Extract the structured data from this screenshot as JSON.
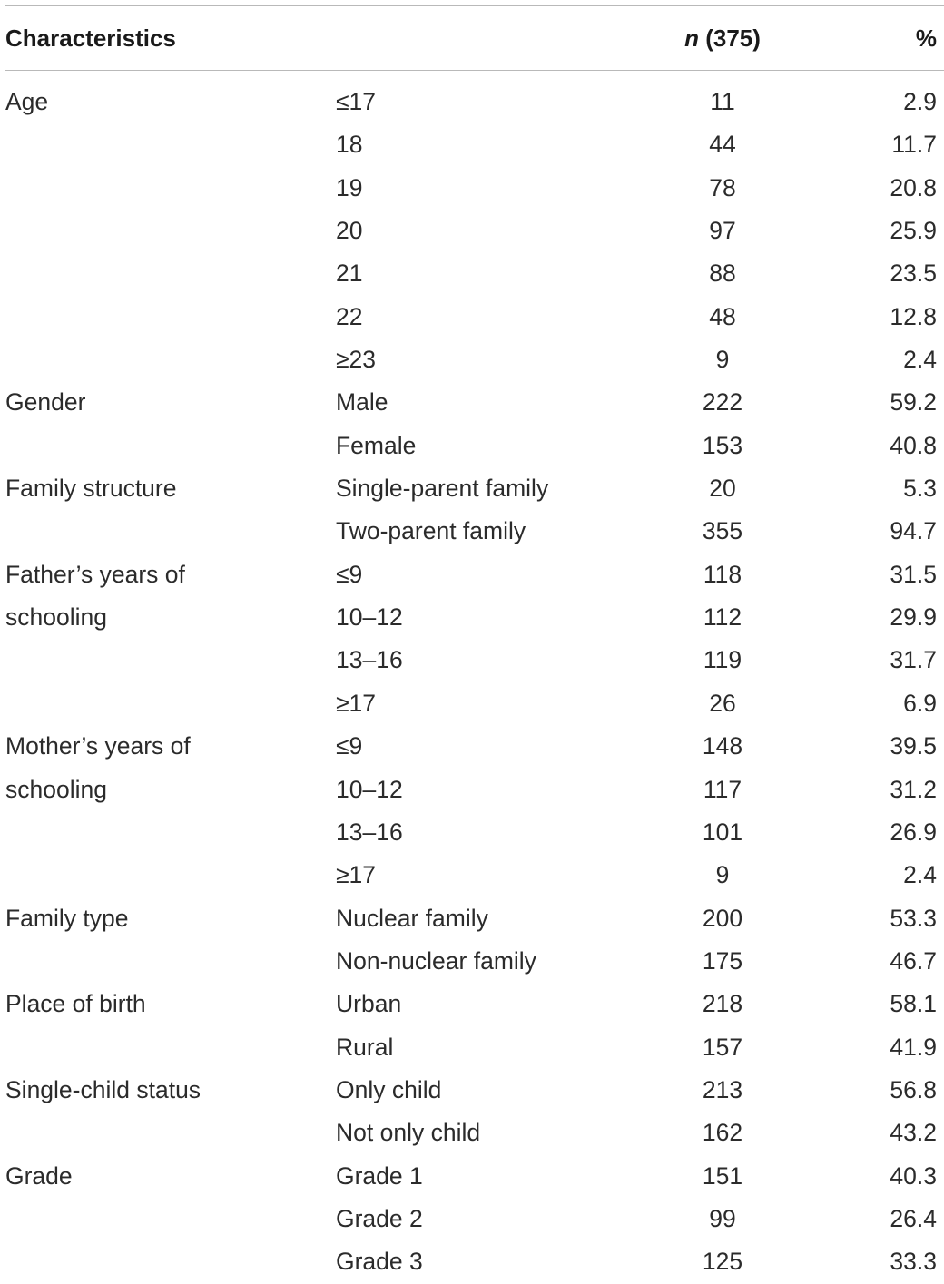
{
  "header": {
    "characteristics": "Characteristics",
    "n_italic": "n",
    "n_count": " (375)",
    "percent": "%"
  },
  "rows": [
    {
      "char": "Age",
      "cat": "≤17",
      "n": "11",
      "pct": "2.9"
    },
    {
      "char": "",
      "cat": "18",
      "n": "44",
      "pct": "11.7"
    },
    {
      "char": "",
      "cat": "19",
      "n": "78",
      "pct": "20.8"
    },
    {
      "char": "",
      "cat": "20",
      "n": "97",
      "pct": "25.9"
    },
    {
      "char": "",
      "cat": "21",
      "n": "88",
      "pct": "23.5"
    },
    {
      "char": "",
      "cat": "22",
      "n": "48",
      "pct": "12.8"
    },
    {
      "char": "",
      "cat": "≥23",
      "n": "9",
      "pct": "2.4"
    },
    {
      "char": "Gender",
      "cat": "Male",
      "n": "222",
      "pct": "59.2"
    },
    {
      "char": "",
      "cat": "Female",
      "n": "153",
      "pct": "40.8"
    },
    {
      "char": "Family structure",
      "cat": "Single-parent family",
      "n": "20",
      "pct": "5.3"
    },
    {
      "char": "",
      "cat": "Two-parent family",
      "n": "355",
      "pct": "94.7"
    },
    {
      "char": "Father’s years of",
      "cat": "≤9",
      "n": "118",
      "pct": "31.5"
    },
    {
      "char": "schooling",
      "cat": "10–12",
      "n": "112",
      "pct": "29.9"
    },
    {
      "char": "",
      "cat": "13–16",
      "n": "119",
      "pct": "31.7"
    },
    {
      "char": "",
      "cat": "≥17",
      "n": "26",
      "pct": "6.9"
    },
    {
      "char": "Mother’s years of",
      "cat": "≤9",
      "n": "148",
      "pct": "39.5"
    },
    {
      "char": "schooling",
      "cat": "10–12",
      "n": "117",
      "pct": "31.2"
    },
    {
      "char": "",
      "cat": "13–16",
      "n": "101",
      "pct": "26.9"
    },
    {
      "char": "",
      "cat": "≥17",
      "n": "9",
      "pct": "2.4"
    },
    {
      "char": "Family type",
      "cat": "Nuclear family",
      "n": "200",
      "pct": "53.3"
    },
    {
      "char": "",
      "cat": "Non-nuclear family",
      "n": "175",
      "pct": "46.7"
    },
    {
      "char": "Place of birth",
      "cat": "Urban",
      "n": "218",
      "pct": "58.1"
    },
    {
      "char": "",
      "cat": "Rural",
      "n": "157",
      "pct": "41.9"
    },
    {
      "char": "Single-child status",
      "cat": "Only child",
      "n": "213",
      "pct": "56.8"
    },
    {
      "char": "",
      "cat": "Not only child",
      "n": "162",
      "pct": "43.2"
    },
    {
      "char": "Grade",
      "cat": "Grade 1",
      "n": "151",
      "pct": "40.3"
    },
    {
      "char": "",
      "cat": "Grade 2",
      "n": "99",
      "pct": "26.4"
    },
    {
      "char": "",
      "cat": "Grade 3",
      "n": "125",
      "pct": "33.3"
    }
  ]
}
